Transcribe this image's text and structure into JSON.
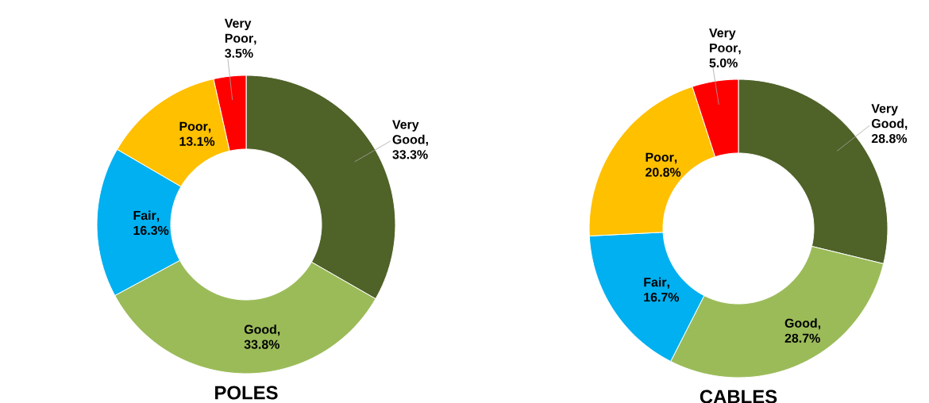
{
  "chart_data": [
    {
      "type": "donut",
      "title": "POLES",
      "categories": [
        "Very Good",
        "Good",
        "Fair",
        "Poor",
        "Very Poor"
      ],
      "values": [
        33.3,
        33.8,
        16.3,
        13.1,
        3.5
      ],
      "value_labels": [
        ", 33.3%",
        ", 33.8%",
        ", 16.3%",
        ", 13.1%",
        ", 3.5%"
      ],
      "colors": [
        "#4f6228",
        "#9bbb59",
        "#00b0f0",
        "#ffc000",
        "#ff0000"
      ]
    },
    {
      "type": "donut",
      "title": "CABLES",
      "categories": [
        "Very Good",
        "Good",
        "Fair",
        "Poor",
        "Very Poor"
      ],
      "values": [
        28.8,
        28.7,
        16.7,
        20.8,
        5.0
      ],
      "value_labels": [
        ", 28.8%",
        ", 28.7%",
        ", 16.7%",
        ", 20.8%",
        ", 5.0%"
      ],
      "colors": [
        "#4f6228",
        "#9bbb59",
        "#00b0f0",
        "#ffc000",
        "#ff0000"
      ]
    }
  ]
}
